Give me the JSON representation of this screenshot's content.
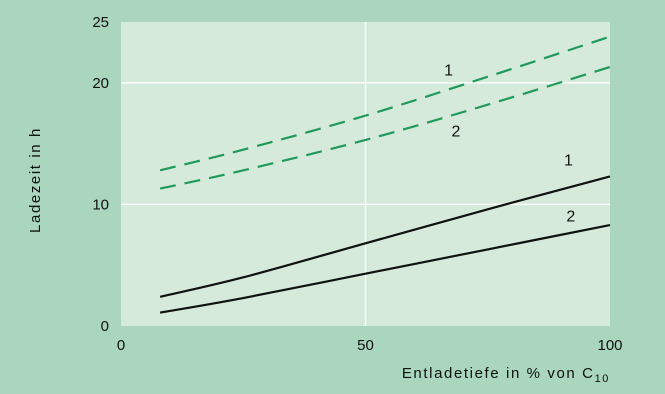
{
  "colors": {
    "background": "#a9d6bd",
    "plot_area": "#d6eadc",
    "grid": "#ffffff",
    "dashed_series": "#1f9a5a",
    "solid_series": "#111111"
  },
  "chart_data": {
    "type": "line",
    "xlabel": "Entladetiefe in % von C",
    "xlabel_subscript": "10",
    "ylabel": "Ladezeit in h",
    "xlim": [
      0,
      100
    ],
    "ylim": [
      0,
      25
    ],
    "x_ticks": [
      "0",
      "50",
      "100"
    ],
    "y_ticks": [
      "0",
      "10",
      "20",
      "25"
    ],
    "x_tick_values": [
      0,
      50,
      100
    ],
    "y_tick_values": [
      0,
      10,
      20,
      25
    ],
    "grid": {
      "x": [
        50
      ],
      "y": [
        10,
        20
      ]
    },
    "legend": "none",
    "series": [
      {
        "label": "1",
        "style": "dashed",
        "color": "#1f9a5a",
        "x": [
          8,
          25,
          50,
          75,
          100
        ],
        "y": [
          12.8,
          14.5,
          17.3,
          20.5,
          23.8
        ]
      },
      {
        "label": "2",
        "style": "dashed",
        "color": "#1f9a5a",
        "x": [
          8,
          25,
          50,
          75,
          100
        ],
        "y": [
          11.3,
          12.8,
          15.3,
          18.2,
          21.3
        ]
      },
      {
        "label": "1",
        "style": "solid",
        "color": "#111111",
        "x": [
          8,
          25,
          50,
          75,
          100
        ],
        "y": [
          2.4,
          4.0,
          6.8,
          9.6,
          12.3
        ]
      },
      {
        "label": "2",
        "style": "solid",
        "color": "#111111",
        "x": [
          8,
          25,
          50,
          75,
          100
        ],
        "y": [
          1.1,
          2.3,
          4.3,
          6.3,
          8.3
        ]
      }
    ],
    "annotations": [
      {
        "series_index": 0,
        "text": "1",
        "x": 67,
        "y": 20.6
      },
      {
        "series_index": 1,
        "text": "2",
        "x": 68.5,
        "y": 15.6
      },
      {
        "series_index": 2,
        "text": "1",
        "x": 91.5,
        "y": 13.2
      },
      {
        "series_index": 3,
        "text": "2",
        "x": 92,
        "y": 8.6
      }
    ]
  }
}
